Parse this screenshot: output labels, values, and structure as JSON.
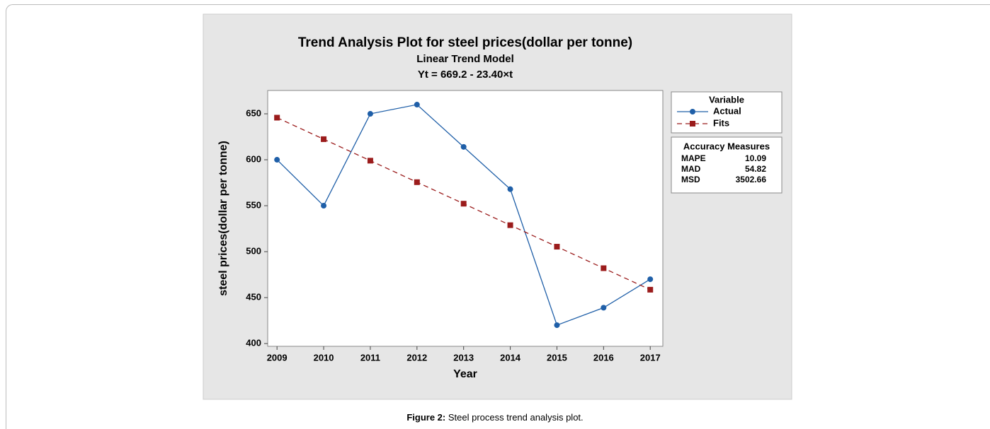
{
  "chart_data": {
    "type": "line",
    "title": "Trend Analysis Plot for steel prices(dollar per tonne)",
    "subtitle": "Linear Trend Model",
    "equation": "Yt = 669.2 - 23.40×t",
    "x_label": "Year",
    "y_label": "steel prices(dollar per tonne)",
    "x": [
      2009,
      2010,
      2011,
      2012,
      2013,
      2014,
      2015,
      2016,
      2017
    ],
    "series": [
      {
        "name": "Actual",
        "color": "#1f5fa8",
        "marker": "circle",
        "dashed": false,
        "values": [
          600,
          550,
          650,
          660,
          614,
          568,
          420,
          439,
          470
        ]
      },
      {
        "name": "Fits",
        "color": "#9b1c1c",
        "marker": "square",
        "dashed": true,
        "values": [
          645.8,
          622.4,
          599.0,
          575.6,
          552.2,
          528.8,
          505.4,
          482.0,
          458.6
        ]
      }
    ],
    "xlim": [
      2008.8,
      2017.27
    ],
    "xticks": [
      2009,
      2010,
      2011,
      2012,
      2013,
      2014,
      2015,
      2016,
      2017
    ],
    "ylim": [
      397,
      675.4
    ],
    "yticks": [
      400,
      450,
      500,
      550,
      600,
      650
    ],
    "legend_title": "Variable",
    "accuracy_measures": {
      "title": "Accuracy Measures",
      "rows": [
        [
          "MAPE",
          10.09
        ],
        [
          "MAD",
          54.82
        ],
        [
          "MSD",
          3502.66
        ]
      ]
    }
  },
  "caption": {
    "label": "Figure 2:",
    "text": "Steel process trend analysis plot."
  }
}
